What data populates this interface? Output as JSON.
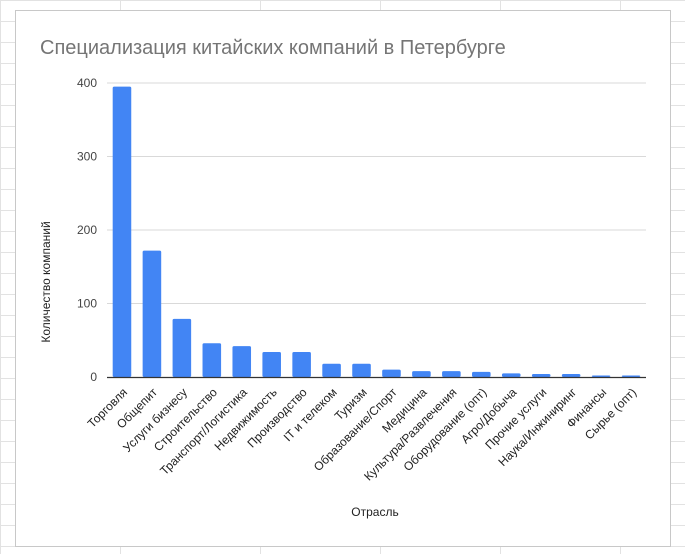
{
  "colors": {
    "bar": "#4285f4",
    "grid": "#d9d9d9",
    "axis": "#333333",
    "title": "#757575"
  },
  "chart_data": {
    "type": "bar",
    "title": "Специализация китайских компаний в Петербурге",
    "xlabel": "Отрасль",
    "ylabel": "Количество компаний",
    "ylim": [
      0,
      400
    ],
    "yticks": [
      0,
      100,
      200,
      300,
      400
    ],
    "grid": true,
    "legend": "none",
    "categories": [
      "Торговля",
      "Общепит",
      "Услуги бизнесу",
      "Строительство",
      "Транспорт/Логистика",
      "Недвижимость",
      "Производство",
      "IT и телеком",
      "Туризм",
      "Образование/Спорт",
      "Медицина",
      "Культура/Развлечения",
      "Оборудование (опт)",
      "Агро/Добыча",
      "Прочие услуги",
      "Наука/Инжиниринг",
      "Финансы",
      "Сырье (опт)"
    ],
    "values": [
      395,
      172,
      79,
      46,
      42,
      34,
      34,
      18,
      18,
      10,
      8,
      8,
      7,
      5,
      4,
      4,
      2,
      2
    ]
  }
}
